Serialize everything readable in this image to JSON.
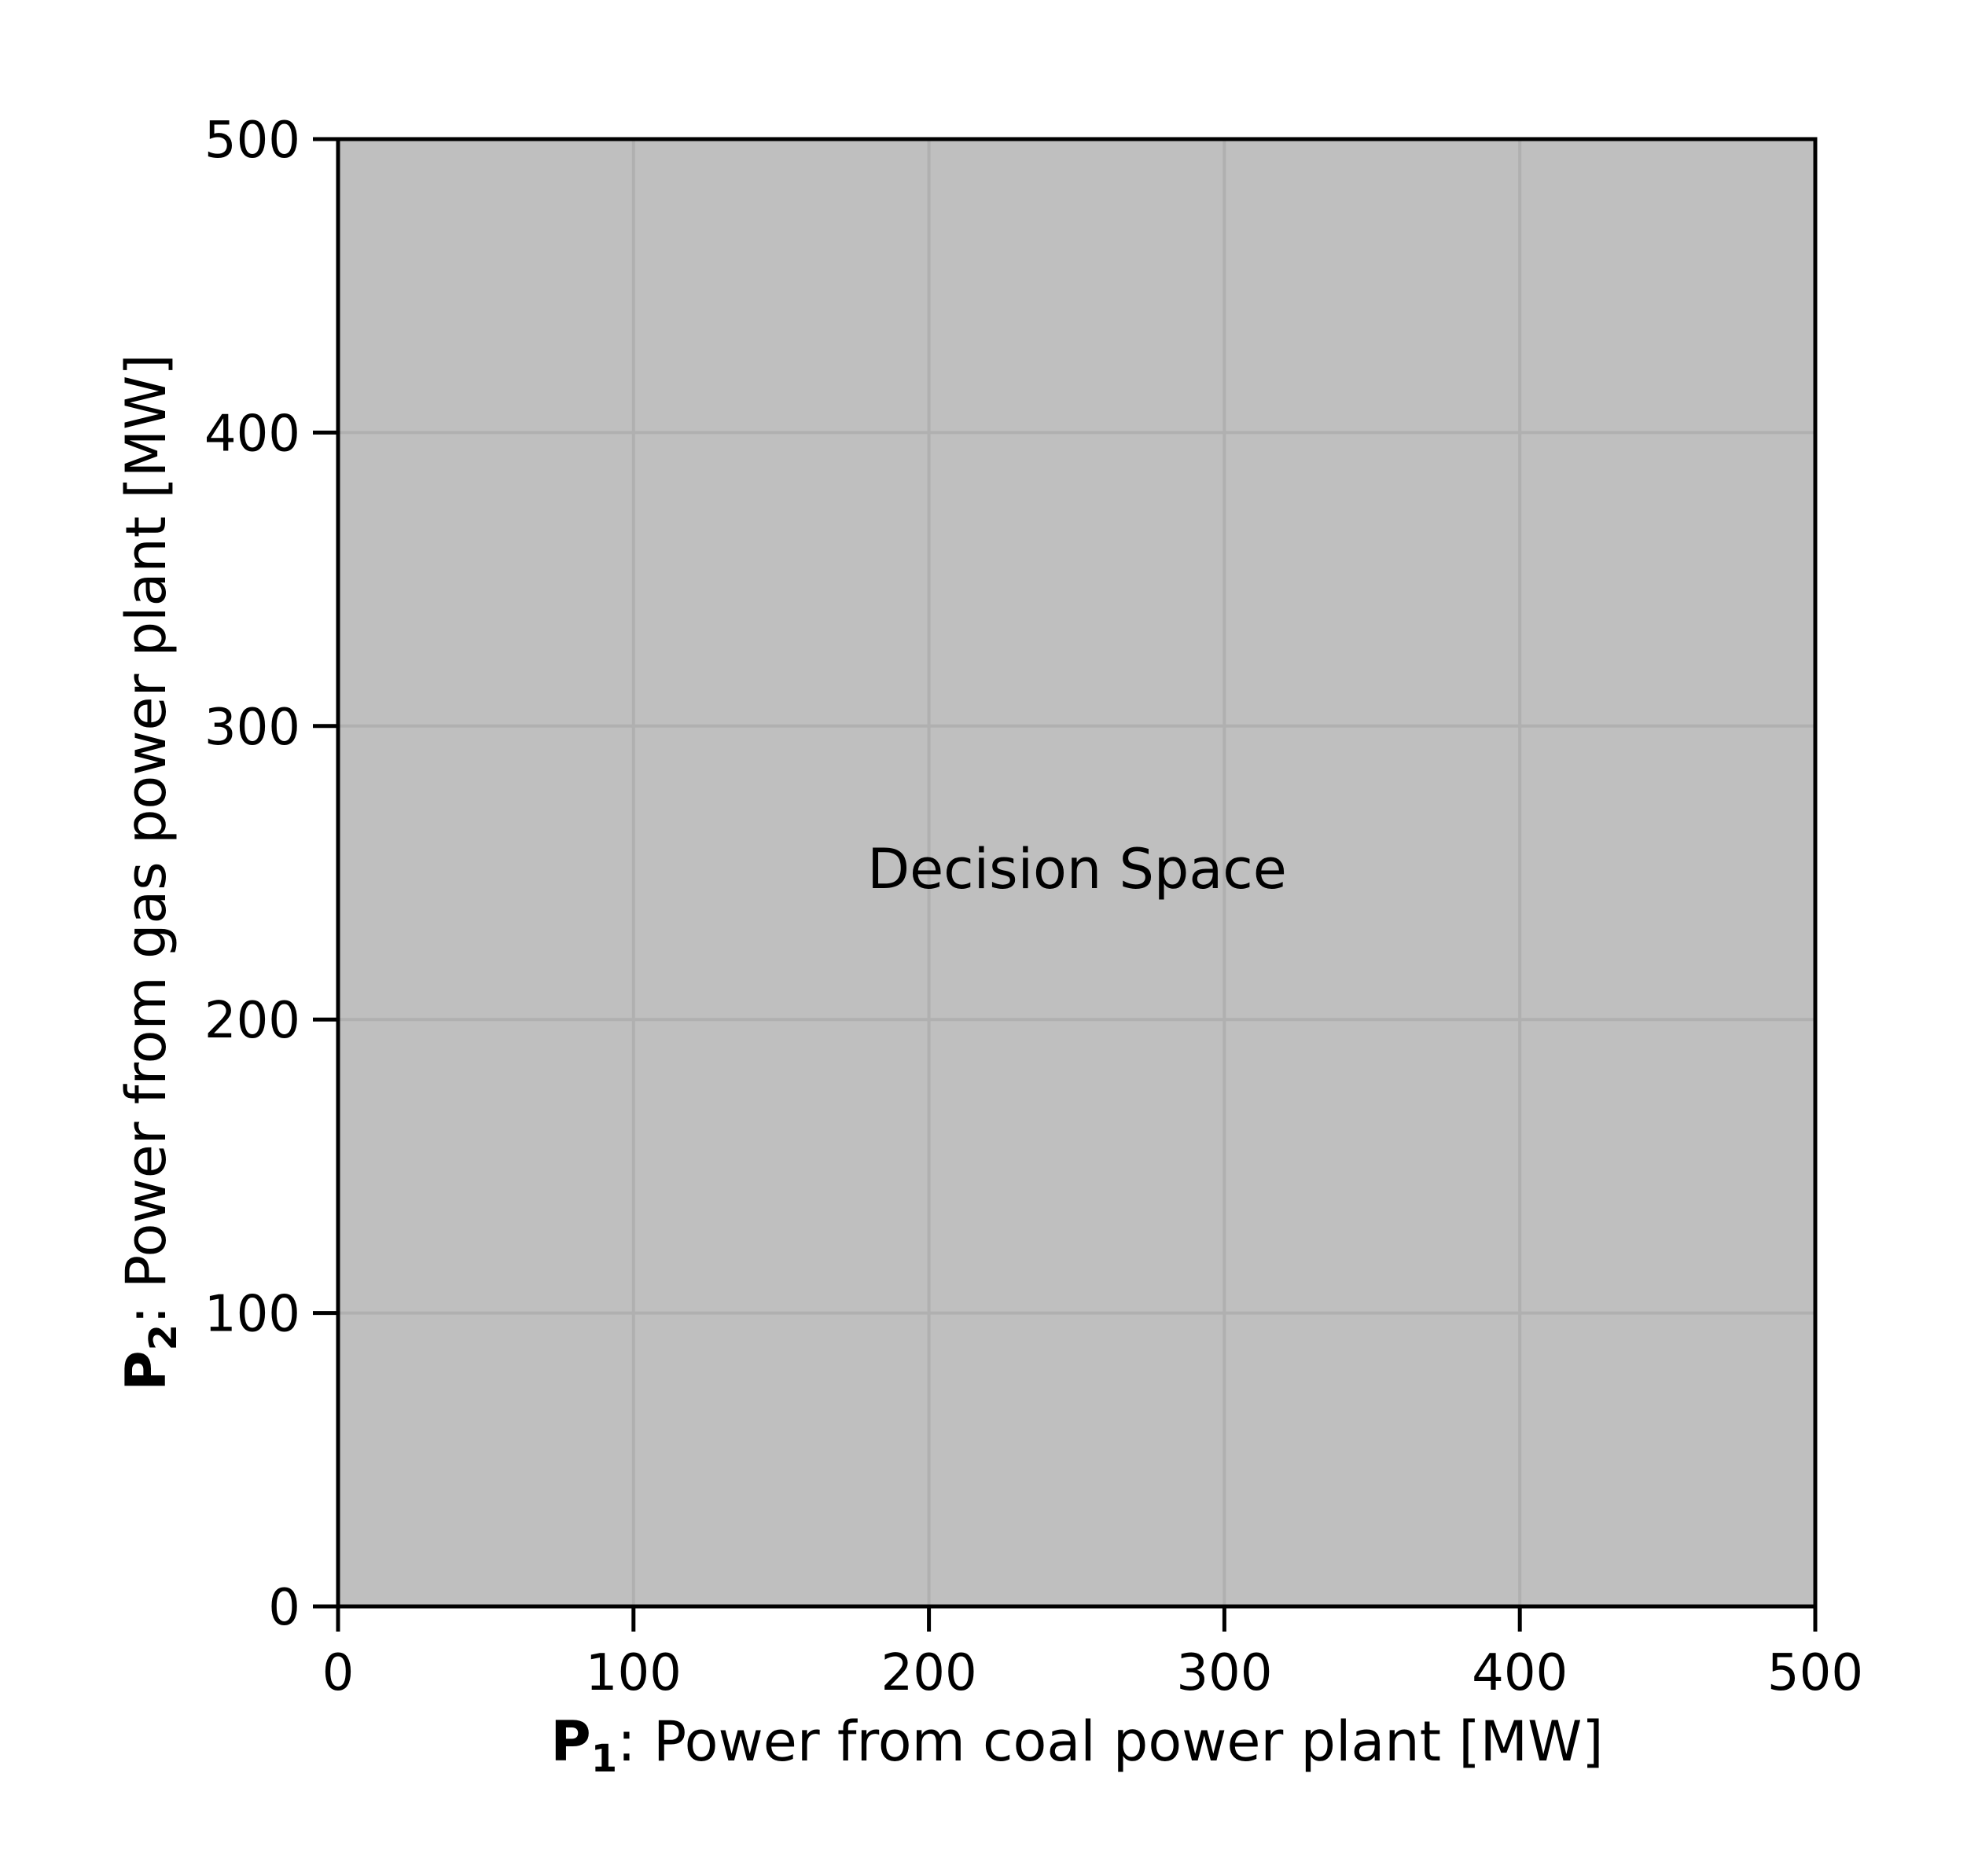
{
  "chart_data": {
    "type": "region",
    "annotation": "Decision Space",
    "region_color": "#bfbfbf",
    "xlabel": {
      "symbol": "P",
      "subscript": "1",
      "text": ": Power from coal power plant [MW]"
    },
    "ylabel": {
      "symbol": "P",
      "subscript": "2",
      "text": ": Power from gas power plant [MW]"
    },
    "xlim": [
      0,
      500
    ],
    "ylim": [
      0,
      500
    ],
    "xticks": [
      0,
      100,
      200,
      300,
      400,
      500
    ],
    "yticks": [
      0,
      100,
      200,
      300,
      400,
      500
    ],
    "grid": true
  }
}
